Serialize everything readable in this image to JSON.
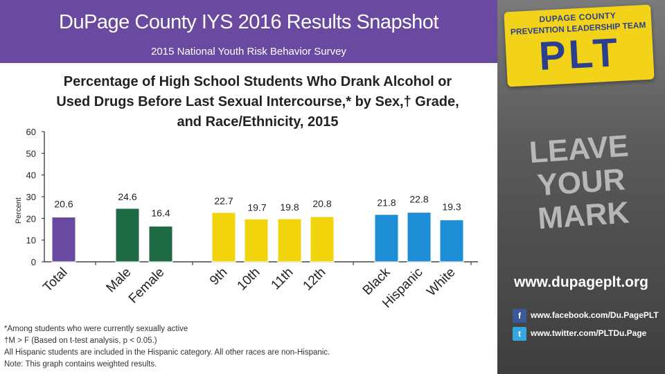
{
  "header": {
    "title": "DuPage County IYS 2016 Results Snapshot",
    "subtitle": "2015 National Youth Risk Behavior Survey"
  },
  "chart_data": {
    "type": "bar",
    "title": "Percentage of High School Students Who Drank Alcohol or Used Drugs Before Last Sexual Intercourse,* by Sex,† Grade, and Race/Ethnicity, 2015",
    "title_lines": [
      "Percentage of High School Students Who Drank Alcohol or",
      "Used Drugs Before Last Sexual Intercourse,* by Sex,† Grade,",
      "and Race/Ethnicity, 2015"
    ],
    "ylabel": "Percent",
    "xlabel": "",
    "ylim": [
      0,
      60
    ],
    "yticks": [
      0,
      10,
      20,
      30,
      40,
      50,
      60
    ],
    "grid": false,
    "categories": [
      "Total",
      "Male",
      "Female",
      "9th",
      "10th",
      "11th",
      "12th",
      "Black",
      "Hispanic",
      "White"
    ],
    "values": [
      20.6,
      24.6,
      16.4,
      22.7,
      19.7,
      19.8,
      20.8,
      21.8,
      22.8,
      19.3
    ],
    "value_labels": [
      "20.6",
      "24.6",
      "16.4",
      "22.7",
      "19.7",
      "19.8",
      "20.8",
      "21.8",
      "22.8",
      "19.3"
    ],
    "colors": [
      "#6a4aa0",
      "#1f6b45",
      "#1f6b45",
      "#f2d40c",
      "#f2d40c",
      "#f2d40c",
      "#f2d40c",
      "#1e8fd6",
      "#1e8fd6",
      "#1e8fd6"
    ]
  },
  "notes": [
    "*Among students who were currently sexually active",
    "†M > F (Based on t-test analysis, p < 0.05.)",
    "All Hispanic students are included in the Hispanic category.  All other races are non-Hispanic.",
    "Note: This graph contains weighted results."
  ],
  "sidebar": {
    "badge_top": "DUPAGE COUNTY",
    "badge_sub": "PREVENTION LEADERSHIP TEAM",
    "badge_big": "PLT",
    "slogan_line1": "LEAVE YOUR",
    "slogan_line2": "MARK",
    "website": "www.dupageplt.org",
    "facebook": "www.facebook.com/Du.PagePLT",
    "twitter": "www.twitter.com/PLTDu.Page",
    "accent_color": "#f3d21a"
  }
}
